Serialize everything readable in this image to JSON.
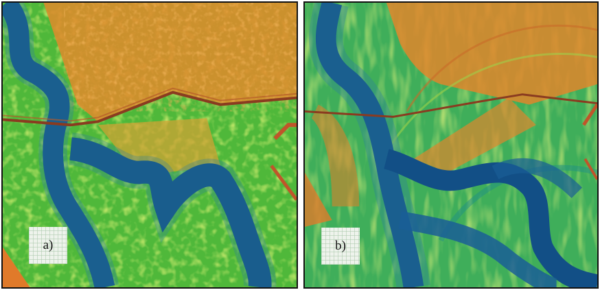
{
  "panels": [
    {
      "id": "a",
      "label": "a)"
    },
    {
      "id": "b",
      "label": "b)"
    }
  ],
  "colors": {
    "low": "#16568c",
    "mid_low": "#1f8f83",
    "mid": "#5cbf3a",
    "mid_high": "#cfd435",
    "high": "#e8892a",
    "line": "#8a3b20",
    "frame": "#111111"
  }
}
